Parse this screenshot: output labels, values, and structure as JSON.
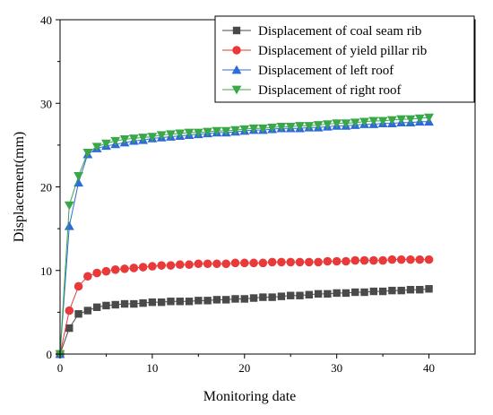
{
  "chart_data": {
    "type": "line",
    "title": "",
    "xlabel": "Monitoring date",
    "ylabel": "Displacement(mm)",
    "xlim": [
      0,
      45
    ],
    "ylim": [
      0,
      40
    ],
    "xticks": [
      "0",
      "10",
      "20",
      "30",
      "40"
    ],
    "yticks": [
      "0",
      "10",
      "20",
      "30",
      "40"
    ],
    "grid": false,
    "legend_position": "top-right",
    "x": [
      0,
      1,
      2,
      3,
      4,
      5,
      6,
      7,
      8,
      9,
      10,
      11,
      12,
      13,
      14,
      15,
      16,
      17,
      18,
      19,
      20,
      21,
      22,
      23,
      24,
      25,
      26,
      27,
      28,
      29,
      30,
      31,
      32,
      33,
      34,
      35,
      36,
      37,
      38,
      39,
      40
    ],
    "series": [
      {
        "name": "Displacement of coal seam rib",
        "color": "#4a4a4a",
        "marker": "square",
        "values": [
          0,
          3.1,
          4.8,
          5.2,
          5.6,
          5.8,
          5.9,
          6.0,
          6.0,
          6.1,
          6.2,
          6.2,
          6.3,
          6.3,
          6.3,
          6.4,
          6.4,
          6.5,
          6.5,
          6.6,
          6.6,
          6.7,
          6.8,
          6.8,
          6.9,
          7.0,
          7.0,
          7.1,
          7.2,
          7.2,
          7.3,
          7.3,
          7.4,
          7.4,
          7.5,
          7.5,
          7.6,
          7.6,
          7.7,
          7.7,
          7.8
        ]
      },
      {
        "name": "Displacement of yield pillar rib",
        "color": "#e83a3a",
        "marker": "circle",
        "values": [
          0,
          5.2,
          8.1,
          9.3,
          9.7,
          9.9,
          10.1,
          10.2,
          10.3,
          10.4,
          10.5,
          10.6,
          10.6,
          10.7,
          10.7,
          10.8,
          10.8,
          10.8,
          10.8,
          10.9,
          10.9,
          10.9,
          10.9,
          11.0,
          11.0,
          11.0,
          11.0,
          11.0,
          11.0,
          11.1,
          11.1,
          11.1,
          11.2,
          11.2,
          11.2,
          11.2,
          11.3,
          11.3,
          11.3,
          11.3,
          11.3
        ]
      },
      {
        "name": "Displacement of left roof",
        "color": "#2f6bd8",
        "marker": "triangle-up",
        "values": [
          0,
          15.3,
          20.5,
          23.9,
          24.6,
          24.9,
          25.1,
          25.3,
          25.5,
          25.6,
          25.8,
          25.9,
          26.0,
          26.1,
          26.2,
          26.3,
          26.4,
          26.5,
          26.5,
          26.6,
          26.7,
          26.8,
          26.8,
          26.9,
          27.0,
          27.0,
          27.0,
          27.1,
          27.1,
          27.2,
          27.3,
          27.3,
          27.4,
          27.5,
          27.5,
          27.6,
          27.6,
          27.7,
          27.7,
          27.8,
          27.8
        ]
      },
      {
        "name": "Displacement of right roof",
        "color": "#3aa84a",
        "marker": "triangle-down",
        "values": [
          0,
          17.8,
          21.3,
          24.1,
          24.8,
          25.2,
          25.5,
          25.7,
          25.8,
          25.9,
          26.0,
          26.2,
          26.3,
          26.4,
          26.5,
          26.5,
          26.6,
          26.7,
          26.7,
          26.8,
          26.9,
          27.0,
          27.0,
          27.1,
          27.2,
          27.2,
          27.3,
          27.3,
          27.4,
          27.5,
          27.6,
          27.6,
          27.7,
          27.8,
          27.9,
          27.9,
          28.0,
          28.1,
          28.1,
          28.2,
          28.3
        ]
      }
    ]
  }
}
